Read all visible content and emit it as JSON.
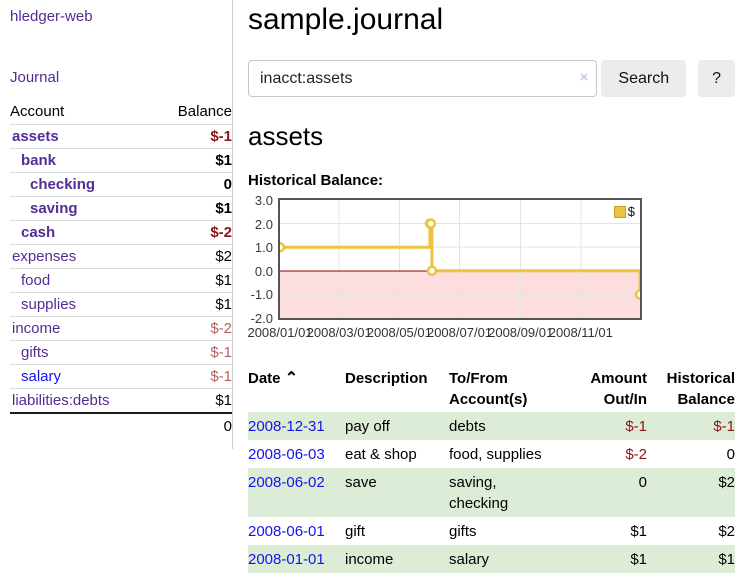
{
  "app": {
    "brand": "hledger-web",
    "nav": {
      "journal": "Journal"
    }
  },
  "sidebar": {
    "accounts_header": {
      "account": "Account",
      "balance": "Balance"
    },
    "accounts": [
      {
        "name": "assets",
        "level": 1,
        "bold": true,
        "blue": false,
        "balance": "$-1",
        "negative": true
      },
      {
        "name": "bank",
        "level": 2,
        "bold": true,
        "blue": false,
        "balance": "$1",
        "negative": false
      },
      {
        "name": "checking",
        "level": 3,
        "bold": true,
        "blue": false,
        "balance": "0",
        "negative": false
      },
      {
        "name": "saving",
        "level": 3,
        "bold": true,
        "blue": false,
        "balance": "$1",
        "negative": false
      },
      {
        "name": "cash",
        "level": 2,
        "bold": true,
        "blue": false,
        "balance": "$-2",
        "negative": true
      },
      {
        "name": "expenses",
        "level": 1,
        "bold": false,
        "blue": false,
        "balance": "$2",
        "negative": false
      },
      {
        "name": "food",
        "level": 2,
        "bold": false,
        "blue": false,
        "balance": "$1",
        "negative": false
      },
      {
        "name": "supplies",
        "level": 2,
        "bold": false,
        "blue": false,
        "balance": "$1",
        "negative": false
      },
      {
        "name": "income",
        "level": 1,
        "bold": false,
        "blue": false,
        "balance": "$-2",
        "negative": true
      },
      {
        "name": "gifts",
        "level": 2,
        "bold": false,
        "blue": false,
        "balance": "$-1",
        "negative": true
      },
      {
        "name": "salary",
        "level": 2,
        "bold": false,
        "blue": true,
        "balance": "$-1",
        "negative": true
      },
      {
        "name": "liabilities:debts",
        "level": 1,
        "bold": false,
        "blue": false,
        "balance": "$1",
        "negative": false
      }
    ],
    "total": "0"
  },
  "header": {
    "title": "sample.journal"
  },
  "search": {
    "value": "inacct:assets",
    "clear_label": "×",
    "button": "Search",
    "help": "?"
  },
  "account_page": {
    "title": "assets",
    "chart_label": "Historical Balance:"
  },
  "chart_data": {
    "type": "line",
    "step": true,
    "title": "Historical Balance:",
    "xlim": [
      0,
      365
    ],
    "ylim": [
      -2,
      3
    ],
    "grid_on": true,
    "legend_position": "top-right",
    "legend": [
      {
        "label": "$",
        "color": "#edc240"
      }
    ],
    "x_ticks": [
      {
        "x": 0,
        "label": "2008/01/01"
      },
      {
        "x": 60,
        "label": "2008/03/01"
      },
      {
        "x": 121,
        "label": "2008/05/01"
      },
      {
        "x": 182,
        "label": "2008/07/01"
      },
      {
        "x": 244,
        "label": "2008/09/01"
      },
      {
        "x": 305,
        "label": "2008/11/01"
      }
    ],
    "y_ticks": [
      {
        "y": 3,
        "label": "3.0"
      },
      {
        "y": 2,
        "label": "2.0"
      },
      {
        "y": 1,
        "label": "1.0"
      },
      {
        "y": 0,
        "label": "0.0"
      },
      {
        "y": -1,
        "label": "-1.0"
      },
      {
        "y": -2,
        "label": "-2.0"
      }
    ],
    "series": [
      {
        "name": "$",
        "color": "#edc240",
        "dates": [
          "2008-01-01",
          "2008-06-01",
          "2008-06-02",
          "2008-06-03",
          "2008-12-31"
        ],
        "points": [
          [
            0,
            1
          ],
          [
            152,
            2
          ],
          [
            153,
            2
          ],
          [
            154,
            0
          ],
          [
            365,
            -1
          ]
        ]
      }
    ],
    "colors": {
      "grid": "#e3e3e3",
      "border": "#545454",
      "zero_line": "#8b0000",
      "negative_region_fill": "#fcdede"
    }
  },
  "register": {
    "columns": {
      "date": "Date",
      "description": "Description",
      "accounts": "To/From Account(s)",
      "amount": "Amount Out/In",
      "balance": "Historical Balance"
    },
    "sort_indicator": "⌃",
    "rows": [
      {
        "date": "2008-12-31",
        "description": "pay off",
        "accounts": "debts",
        "amount": "$-1",
        "amount_negative": true,
        "balance": "$-1",
        "balance_negative": true
      },
      {
        "date": "2008-06-03",
        "description": "eat & shop",
        "accounts": "food, supplies",
        "amount": "$-2",
        "amount_negative": true,
        "balance": "0",
        "balance_negative": false
      },
      {
        "date": "2008-06-02",
        "description": "save",
        "accounts": "saving, checking",
        "amount": "0",
        "amount_negative": false,
        "balance": "$2",
        "balance_negative": false
      },
      {
        "date": "2008-06-01",
        "description": "gift",
        "accounts": "gifts",
        "amount": "$1",
        "amount_negative": false,
        "balance": "$2",
        "balance_negative": false
      },
      {
        "date": "2008-01-01",
        "description": "income",
        "accounts": "salary",
        "amount": "$1",
        "amount_negative": false,
        "balance": "$1",
        "balance_negative": false
      }
    ]
  }
}
